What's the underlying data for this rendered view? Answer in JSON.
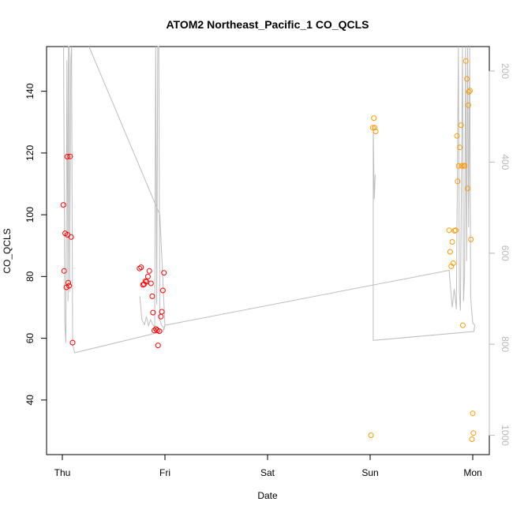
{
  "chart_data": {
    "type": "scatter",
    "title": "ATOM2 Northeast_Pacific_1 CO_QCLS",
    "xlabel": "Date",
    "ylabel": "CO_QCLS",
    "x_ticks": [
      "Thu",
      "Fri",
      "Sat",
      "Sun",
      "Mon"
    ],
    "ylim": [
      23,
      155
    ],
    "y_ticks": [
      40,
      60,
      80,
      100,
      120,
      140
    ],
    "right_axis": {
      "color": "#b8b8b8",
      "ticks": [
        200,
        400,
        600,
        800,
        1000
      ],
      "direction": "reversed"
    },
    "grid": false,
    "series": [
      {
        "color": "#ff0000",
        "marker": "open-circle",
        "points": [
          [
            0.01,
            103.2
          ],
          [
            0.017,
            81.8
          ],
          [
            0.028,
            94.0
          ],
          [
            0.04,
            76.5
          ],
          [
            0.048,
            118.8
          ],
          [
            0.05,
            93.5
          ],
          [
            0.058,
            78.0
          ],
          [
            0.066,
            77.0
          ],
          [
            0.076,
            118.9
          ],
          [
            0.086,
            92.8
          ],
          [
            0.1,
            58.6
          ],
          [
            0.752,
            82.6
          ],
          [
            0.768,
            83.0
          ],
          [
            0.786,
            77.3
          ],
          [
            0.796,
            77.5
          ],
          [
            0.81,
            78.5
          ],
          [
            0.82,
            78.3
          ],
          [
            0.834,
            80.0
          ],
          [
            0.848,
            81.8
          ],
          [
            0.864,
            77.8
          ],
          [
            0.876,
            73.6
          ],
          [
            0.884,
            68.3
          ],
          [
            0.896,
            62.5
          ],
          [
            0.912,
            63.0
          ],
          [
            0.925,
            62.6
          ],
          [
            0.933,
            57.7
          ],
          [
            0.946,
            62.3
          ],
          [
            0.96,
            67.0
          ],
          [
            0.97,
            68.6
          ],
          [
            0.98,
            75.5
          ],
          [
            0.99,
            81.2
          ]
        ]
      },
      {
        "color": "#ff9900",
        "marker": "open-circle",
        "points": [
          [
            3.008,
            28.6
          ],
          [
            3.026,
            128.2
          ],
          [
            3.036,
            131.3
          ],
          [
            3.044,
            128.2
          ],
          [
            3.054,
            127.0
          ],
          [
            3.77,
            95.0
          ],
          [
            3.78,
            88.0
          ],
          [
            3.79,
            83.3
          ],
          [
            3.8,
            91.2
          ],
          [
            3.81,
            84.3
          ],
          [
            3.822,
            94.8
          ],
          [
            3.834,
            95.0
          ],
          [
            3.846,
            125.5
          ],
          [
            3.852,
            110.8
          ],
          [
            3.862,
            115.8
          ],
          [
            3.874,
            121.8
          ],
          [
            3.886,
            129.0
          ],
          [
            3.894,
            115.8
          ],
          [
            3.904,
            64.2
          ],
          [
            3.912,
            115.8
          ],
          [
            3.922,
            115.9
          ],
          [
            3.932,
            149.8
          ],
          [
            3.942,
            144.0
          ],
          [
            3.95,
            108.5
          ],
          [
            3.958,
            135.5
          ],
          [
            3.962,
            139.8
          ],
          [
            3.972,
            140.2
          ],
          [
            3.982,
            92.0
          ],
          [
            3.992,
            27.3
          ],
          [
            4.0,
            35.7
          ],
          [
            4.006,
            29.3
          ]
        ]
      }
    ],
    "gray_lines": [
      {
        "color": "#bdbdbd",
        "note_axis": "left",
        "points": [
          [
            0.012,
            155
          ],
          [
            0.024,
            65
          ],
          [
            0.034,
            58.5
          ],
          [
            0.045,
            150
          ],
          [
            0.055,
            72
          ],
          [
            0.06,
            155
          ],
          [
            0.066,
            155
          ],
          [
            0.071,
            75
          ],
          [
            0.082,
            150
          ],
          [
            0.09,
            155
          ],
          [
            0.1,
            58
          ],
          [
            0.12,
            55.3
          ],
          [
            0.98,
            62.2
          ],
          [
            1.0,
            64.2
          ],
          [
            0.95,
            100
          ],
          [
            0.26,
            155
          ],
          [
            0.26,
            155
          ]
        ]
      },
      {
        "color": "#bdbdbd",
        "points": [
          [
            0.755,
            73.6
          ],
          [
            0.765,
            70
          ],
          [
            0.775,
            66
          ],
          [
            0.8,
            64.4
          ],
          [
            0.82,
            67
          ],
          [
            0.84,
            64.1
          ],
          [
            0.86,
            66
          ],
          [
            0.88,
            64.5
          ],
          [
            0.9,
            63.6
          ],
          [
            0.91,
            155
          ],
          [
            0.92,
            71
          ],
          [
            0.93,
            155
          ],
          [
            0.94,
            155
          ],
          [
            0.95,
            66
          ],
          [
            0.97,
            64
          ],
          [
            0.99,
            63.5
          ]
        ]
      },
      {
        "color": "#bdbdbd",
        "points": [
          [
            0.99,
            62.6
          ],
          [
            1.0,
            64.2
          ],
          [
            3.77,
            82.0
          ],
          [
            3.78,
            78
          ],
          [
            3.8,
            70
          ],
          [
            3.82,
            76
          ],
          [
            3.84,
            69.4
          ],
          [
            3.86,
            155
          ],
          [
            3.87,
            75
          ],
          [
            3.88,
            69
          ],
          [
            3.9,
            155
          ],
          [
            3.91,
            72
          ],
          [
            3.92,
            80
          ],
          [
            3.93,
            155
          ],
          [
            3.94,
            85
          ],
          [
            3.95,
            155
          ],
          [
            3.96,
            96
          ],
          [
            3.97,
            155
          ],
          [
            3.98,
            73
          ],
          [
            4.0,
            65
          ],
          [
            4.02,
            64.2
          ],
          [
            4.01,
            62.2
          ],
          [
            3.03,
            59.3
          ],
          [
            3.03,
            129
          ],
          [
            3.04,
            105
          ],
          [
            3.05,
            113
          ]
        ]
      }
    ]
  }
}
